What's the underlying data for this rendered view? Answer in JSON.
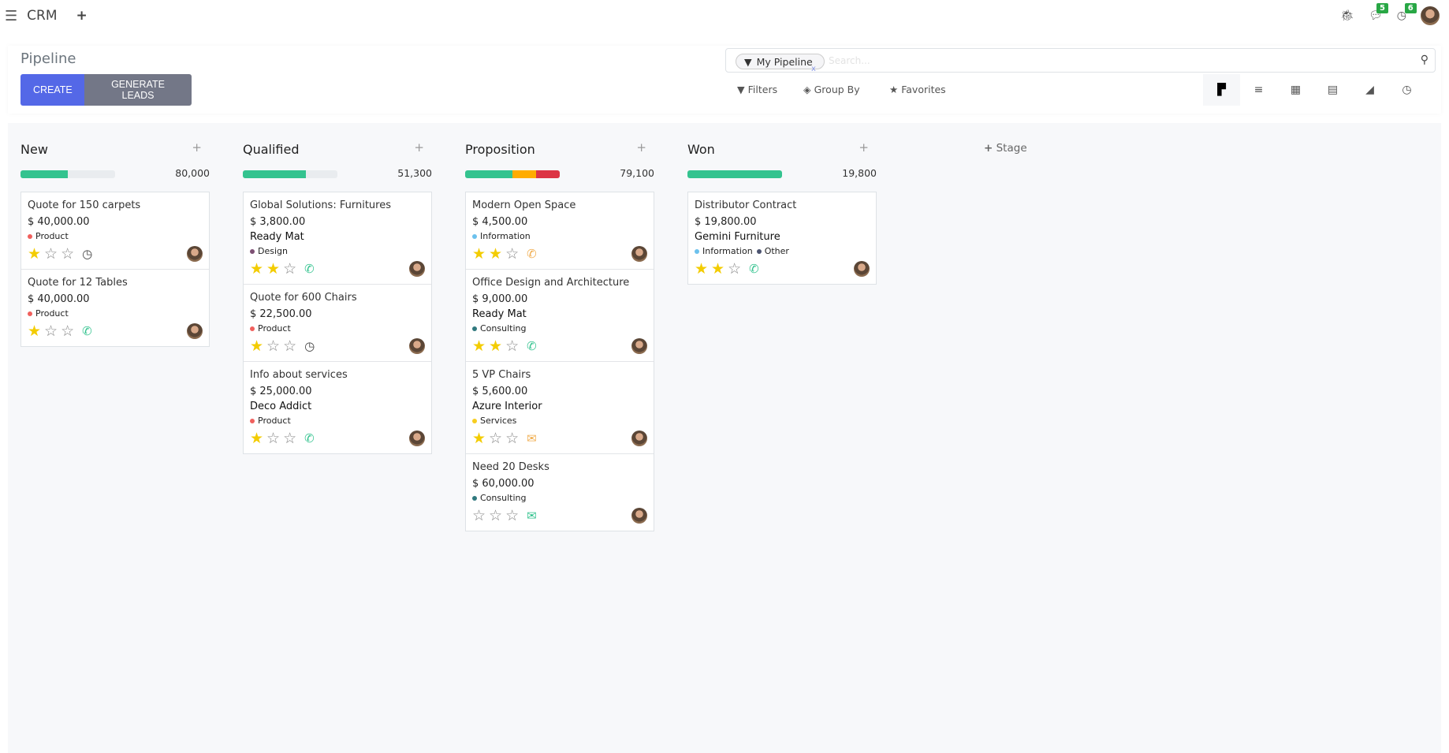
{
  "topbar": {
    "app_name": "CRM",
    "messages_count": "5",
    "activities_count": "6"
  },
  "control_panel": {
    "title": "Pipeline",
    "create_label": "CREATE",
    "generate_label": "GENERATE LEADS",
    "facet": "My Pipeline",
    "search_placeholder": "Search...",
    "filters_label": "Filters",
    "groupby_label": "Group By",
    "favorites_label": "Favorites",
    "views": [
      "kanban",
      "list",
      "calendar",
      "pivot",
      "graph",
      "activity"
    ],
    "active_view": "kanban"
  },
  "colors": {
    "primary": "#5468e7",
    "secondary": "#737787",
    "green": "#34c38f",
    "orange": "#ffac00",
    "red": "#dc3545",
    "star": "#f3cc00"
  },
  "add_stage_label": "Stage",
  "columns": [
    {
      "name": "New",
      "total": "80,000",
      "progress": [
        {
          "color": "#34c38f",
          "pct": 50
        }
      ],
      "cards": [
        {
          "title": "Quote for 150 carpets",
          "amount": "$ 40,000.00",
          "company": "",
          "tags": [
            {
              "label": "Product",
              "color": "#f0605d"
            }
          ],
          "priority": 1,
          "activity": "clock-icon",
          "activity_color": "#444"
        },
        {
          "title": "Quote for 12 Tables",
          "amount": "$ 40,000.00",
          "company": "",
          "tags": [
            {
              "label": "Product",
              "color": "#f0605d"
            }
          ],
          "priority": 1,
          "activity": "phone-icon",
          "activity_color": "#34c38f"
        }
      ]
    },
    {
      "name": "Qualified",
      "total": "51,300",
      "progress": [
        {
          "color": "#34c38f",
          "pct": 67
        }
      ],
      "cards": [
        {
          "title": "Global Solutions: Furnitures",
          "amount": "$ 3,800.00",
          "company": "Ready Mat",
          "tags": [
            {
              "label": "Design",
              "color": "#7d4f73"
            }
          ],
          "priority": 2,
          "activity": "phone-icon",
          "activity_color": "#34c38f"
        },
        {
          "title": "Quote for 600 Chairs",
          "amount": "$ 22,500.00",
          "company": "",
          "tags": [
            {
              "label": "Product",
              "color": "#f0605d"
            }
          ],
          "priority": 1,
          "activity": "clock-icon",
          "activity_color": "#444"
        },
        {
          "title": "Info about services",
          "amount": "$ 25,000.00",
          "company": "Deco Addict",
          "tags": [
            {
              "label": "Product",
              "color": "#f0605d"
            }
          ],
          "priority": 1,
          "activity": "phone-icon",
          "activity_color": "#34c38f"
        }
      ]
    },
    {
      "name": "Proposition",
      "total": "79,100",
      "progress": [
        {
          "color": "#34c38f",
          "pct": 50
        },
        {
          "color": "#ffac00",
          "pct": 25
        },
        {
          "color": "#dc3545",
          "pct": 25
        }
      ],
      "cards": [
        {
          "title": "Modern Open Space",
          "amount": "$ 4,500.00",
          "company": "",
          "tags": [
            {
              "label": "Information",
              "color": "#6cc1ed"
            }
          ],
          "priority": 2,
          "activity": "phone-icon",
          "activity_color": "#f0ad4e"
        },
        {
          "title": "Office Design and Architecture",
          "amount": "$ 9,000.00",
          "company": "Ready Mat",
          "tags": [
            {
              "label": "Consulting",
              "color": "#30797e"
            }
          ],
          "priority": 2,
          "activity": "phone-icon",
          "activity_color": "#34c38f"
        },
        {
          "title": "5 VP Chairs",
          "amount": "$ 5,600.00",
          "company": "Azure Interior",
          "tags": [
            {
              "label": "Services",
              "color": "#f7cd1f"
            }
          ],
          "priority": 1,
          "activity": "envelope-icon",
          "activity_color": "#f0ad4e"
        },
        {
          "title": "Need 20 Desks",
          "amount": "$ 60,000.00",
          "company": "",
          "tags": [
            {
              "label": "Consulting",
              "color": "#30797e"
            }
          ],
          "priority": 0,
          "activity": "envelope-icon",
          "activity_color": "#34c38f"
        }
      ]
    },
    {
      "name": "Won",
      "total": "19,800",
      "progress": [
        {
          "color": "#34c38f",
          "pct": 100
        }
      ],
      "cards": [
        {
          "title": "Distributor Contract",
          "amount": "$ 19,800.00",
          "company": "Gemini Furniture",
          "tags": [
            {
              "label": "Information",
              "color": "#6cc1ed"
            },
            {
              "label": "Other",
              "color": "#4c5470"
            }
          ],
          "priority": 2,
          "activity": "phone-icon",
          "activity_color": "#34c38f"
        }
      ]
    }
  ]
}
